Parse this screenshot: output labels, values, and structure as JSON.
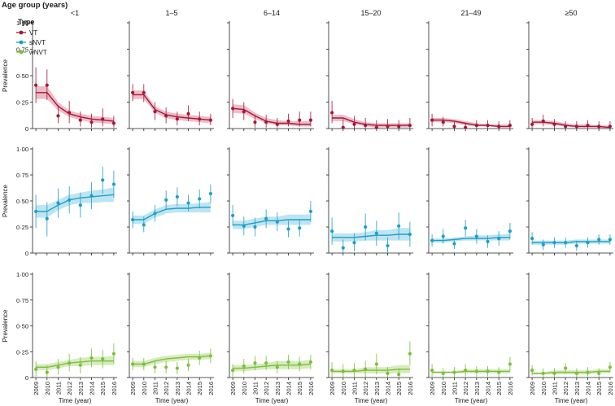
{
  "chart_data": {
    "type": "scatter",
    "title": "Age group (years)",
    "legend_title": "Type",
    "legend_position": "top-left",
    "xlabel": "Time (year)",
    "ylabel": "Prevalence",
    "x": [
      2009,
      2010,
      2011,
      2012,
      2013,
      2014,
      2015,
      2016
    ],
    "x_tick_labels": [
      "2009",
      "2010",
      "2011",
      "2012",
      "2013",
      "2014",
      "2015",
      "2016"
    ],
    "xlim": [
      2008.7,
      2016.3
    ],
    "ylim": [
      0,
      1
    ],
    "y_ticks": [
      0,
      0.25,
      0.5,
      0.75,
      1
    ],
    "y_tick_labels": [
      "0",
      "0·25",
      "0·50",
      "0·75",
      "1·00"
    ],
    "age_groups": [
      "<1",
      "1–5",
      "6–14",
      "15–20",
      "21–49",
      "≥50"
    ],
    "types": [
      {
        "name": "VT",
        "color": "#a3173a",
        "band_color": "#e8a5b1"
      },
      {
        "name": "sNVT",
        "color": "#1aa0c8",
        "band_color": "#a9dbec"
      },
      {
        "name": "wNVT",
        "color": "#7bbf3a",
        "band_color": "#c9e4a8"
      }
    ],
    "series": [
      {
        "type": "VT",
        "age_group": "<1",
        "points": [
          0.41,
          0.41,
          0.12,
          0.15,
          0.08,
          0.06,
          0.09,
          0.05
        ],
        "lower": [
          0.24,
          0.27,
          0.05,
          0.05,
          0.02,
          0.01,
          0.02,
          0.01
        ],
        "upper": [
          0.58,
          0.56,
          0.22,
          0.26,
          0.16,
          0.14,
          0.19,
          0.12
        ],
        "fit": [
          0.34,
          0.34,
          0.21,
          0.14,
          0.11,
          0.09,
          0.08,
          0.07
        ],
        "fit_lower": [
          0.28,
          0.28,
          0.17,
          0.11,
          0.08,
          0.06,
          0.05,
          0.04
        ],
        "fit_upper": [
          0.4,
          0.4,
          0.25,
          0.17,
          0.14,
          0.12,
          0.11,
          0.1
        ]
      },
      {
        "type": "VT",
        "age_group": "1–5",
        "points": [
          0.34,
          0.34,
          0.16,
          0.12,
          0.09,
          0.14,
          0.09,
          0.08
        ],
        "lower": [
          0.26,
          0.25,
          0.08,
          0.05,
          0.03,
          0.07,
          0.03,
          0.03
        ],
        "upper": [
          0.42,
          0.42,
          0.25,
          0.2,
          0.16,
          0.22,
          0.16,
          0.14
        ],
        "fit": [
          0.32,
          0.32,
          0.18,
          0.13,
          0.11,
          0.1,
          0.09,
          0.08
        ],
        "fit_lower": [
          0.28,
          0.28,
          0.15,
          0.1,
          0.08,
          0.07,
          0.06,
          0.05
        ],
        "fit_upper": [
          0.36,
          0.36,
          0.21,
          0.16,
          0.14,
          0.13,
          0.12,
          0.11
        ]
      },
      {
        "type": "VT",
        "age_group": "6–14",
        "points": [
          0.19,
          0.16,
          0.06,
          0.06,
          0.04,
          0.07,
          0.08,
          0.08
        ],
        "lower": [
          0.1,
          0.08,
          0.01,
          0.01,
          0.01,
          0.02,
          0.02,
          0.02
        ],
        "upper": [
          0.28,
          0.25,
          0.13,
          0.13,
          0.1,
          0.14,
          0.16,
          0.16
        ],
        "fit": [
          0.19,
          0.18,
          0.12,
          0.07,
          0.05,
          0.05,
          0.04,
          0.04
        ],
        "fit_lower": [
          0.15,
          0.14,
          0.09,
          0.05,
          0.03,
          0.03,
          0.02,
          0.02
        ],
        "fit_upper": [
          0.23,
          0.22,
          0.15,
          0.1,
          0.08,
          0.07,
          0.07,
          0.07
        ]
      },
      {
        "type": "VT",
        "age_group": "15–20",
        "points": [
          0.15,
          0.01,
          0.04,
          0.03,
          0.01,
          0.02,
          0.02,
          0.03
        ],
        "lower": [
          0.05,
          0.0,
          0.0,
          0.0,
          0.0,
          0.0,
          0.0,
          0.0
        ],
        "upper": [
          0.26,
          0.09,
          0.12,
          0.1,
          0.08,
          0.09,
          0.08,
          0.1
        ],
        "fit": [
          0.1,
          0.1,
          0.06,
          0.04,
          0.03,
          0.03,
          0.03,
          0.03
        ],
        "fit_lower": [
          0.07,
          0.07,
          0.04,
          0.02,
          0.01,
          0.01,
          0.01,
          0.01
        ],
        "fit_upper": [
          0.13,
          0.13,
          0.09,
          0.06,
          0.05,
          0.05,
          0.05,
          0.05
        ]
      },
      {
        "type": "VT",
        "age_group": "21–49",
        "points": [
          0.08,
          0.06,
          0.02,
          0.01,
          0.03,
          0.03,
          0.02,
          0.03
        ],
        "lower": [
          0.02,
          0.02,
          0.0,
          0.0,
          0.0,
          0.0,
          0.0,
          0.0
        ],
        "upper": [
          0.14,
          0.11,
          0.07,
          0.05,
          0.08,
          0.08,
          0.07,
          0.08
        ],
        "fit": [
          0.08,
          0.08,
          0.07,
          0.05,
          0.03,
          0.03,
          0.02,
          0.02
        ],
        "fit_lower": [
          0.06,
          0.06,
          0.05,
          0.03,
          0.02,
          0.02,
          0.01,
          0.01
        ],
        "fit_upper": [
          0.1,
          0.1,
          0.09,
          0.07,
          0.05,
          0.04,
          0.04,
          0.04
        ]
      },
      {
        "type": "VT",
        "age_group": "≥50",
        "points": [
          0.04,
          0.07,
          0.04,
          0.02,
          0.02,
          0.03,
          0.02,
          0.02
        ],
        "lower": [
          0.0,
          0.02,
          0.0,
          0.0,
          0.0,
          0.0,
          0.0,
          0.0
        ],
        "upper": [
          0.1,
          0.13,
          0.09,
          0.07,
          0.07,
          0.08,
          0.07,
          0.07
        ],
        "fit": [
          0.06,
          0.06,
          0.05,
          0.03,
          0.02,
          0.02,
          0.02,
          0.01
        ],
        "fit_lower": [
          0.04,
          0.04,
          0.03,
          0.02,
          0.01,
          0.01,
          0.01,
          0.0
        ],
        "fit_upper": [
          0.08,
          0.08,
          0.07,
          0.05,
          0.04,
          0.04,
          0.03,
          0.03
        ]
      },
      {
        "type": "sNVT",
        "age_group": "<1",
        "points": [
          0.4,
          0.33,
          0.48,
          0.51,
          0.46,
          0.55,
          0.7,
          0.66
        ],
        "lower": [
          0.24,
          0.16,
          0.34,
          0.38,
          0.34,
          0.42,
          0.57,
          0.53
        ],
        "upper": [
          0.56,
          0.49,
          0.62,
          0.64,
          0.58,
          0.68,
          0.83,
          0.79
        ],
        "fit": [
          0.4,
          0.4,
          0.46,
          0.51,
          0.53,
          0.54,
          0.55,
          0.56
        ],
        "fit_lower": [
          0.34,
          0.34,
          0.41,
          0.46,
          0.48,
          0.48,
          0.49,
          0.49
        ],
        "fit_upper": [
          0.46,
          0.46,
          0.51,
          0.56,
          0.58,
          0.6,
          0.61,
          0.63
        ]
      },
      {
        "type": "sNVT",
        "age_group": "1–5",
        "points": [
          0.32,
          0.27,
          0.38,
          0.51,
          0.54,
          0.48,
          0.52,
          0.57
        ],
        "lower": [
          0.24,
          0.2,
          0.3,
          0.42,
          0.45,
          0.4,
          0.43,
          0.48
        ],
        "upper": [
          0.4,
          0.35,
          0.46,
          0.6,
          0.63,
          0.56,
          0.61,
          0.66
        ],
        "fit": [
          0.32,
          0.32,
          0.38,
          0.42,
          0.43,
          0.43,
          0.44,
          0.44
        ],
        "fit_lower": [
          0.28,
          0.28,
          0.34,
          0.38,
          0.39,
          0.39,
          0.39,
          0.39
        ],
        "fit_upper": [
          0.36,
          0.36,
          0.42,
          0.46,
          0.47,
          0.47,
          0.48,
          0.49
        ]
      },
      {
        "type": "sNVT",
        "age_group": "6–14",
        "points": [
          0.36,
          0.26,
          0.25,
          0.33,
          0.3,
          0.23,
          0.24,
          0.4
        ],
        "lower": [
          0.26,
          0.17,
          0.16,
          0.24,
          0.21,
          0.15,
          0.16,
          0.3
        ],
        "upper": [
          0.46,
          0.35,
          0.34,
          0.42,
          0.39,
          0.31,
          0.32,
          0.5
        ],
        "fit": [
          0.27,
          0.27,
          0.29,
          0.31,
          0.31,
          0.32,
          0.32,
          0.32
        ],
        "fit_lower": [
          0.23,
          0.23,
          0.25,
          0.27,
          0.27,
          0.27,
          0.27,
          0.27
        ],
        "fit_upper": [
          0.31,
          0.31,
          0.33,
          0.35,
          0.35,
          0.37,
          0.37,
          0.37
        ]
      },
      {
        "type": "sNVT",
        "age_group": "15–20",
        "points": [
          0.21,
          0.05,
          0.1,
          0.25,
          0.19,
          0.07,
          0.26,
          0.18
        ],
        "lower": [
          0.08,
          0.0,
          0.02,
          0.12,
          0.07,
          0.0,
          0.13,
          0.06
        ],
        "upper": [
          0.34,
          0.13,
          0.19,
          0.38,
          0.31,
          0.15,
          0.39,
          0.3
        ],
        "fit": [
          0.15,
          0.15,
          0.15,
          0.16,
          0.17,
          0.17,
          0.18,
          0.18
        ],
        "fit_lower": [
          0.11,
          0.11,
          0.11,
          0.12,
          0.12,
          0.12,
          0.12,
          0.12
        ],
        "fit_upper": [
          0.19,
          0.19,
          0.19,
          0.2,
          0.22,
          0.22,
          0.24,
          0.24
        ]
      },
      {
        "type": "sNVT",
        "age_group": "21–49",
        "points": [
          0.12,
          0.16,
          0.09,
          0.24,
          0.16,
          0.11,
          0.14,
          0.21
        ],
        "lower": [
          0.06,
          0.09,
          0.04,
          0.16,
          0.09,
          0.05,
          0.07,
          0.13
        ],
        "upper": [
          0.18,
          0.23,
          0.14,
          0.32,
          0.23,
          0.17,
          0.21,
          0.29
        ],
        "fit": [
          0.12,
          0.12,
          0.13,
          0.14,
          0.14,
          0.14,
          0.15,
          0.15
        ],
        "fit_lower": [
          0.1,
          0.1,
          0.11,
          0.12,
          0.12,
          0.12,
          0.12,
          0.12
        ],
        "fit_upper": [
          0.14,
          0.14,
          0.15,
          0.16,
          0.17,
          0.17,
          0.18,
          0.18
        ]
      },
      {
        "type": "sNVT",
        "age_group": "≥50",
        "points": [
          0.14,
          0.08,
          0.1,
          0.1,
          0.07,
          0.1,
          0.13,
          0.13
        ],
        "lower": [
          0.08,
          0.03,
          0.05,
          0.05,
          0.02,
          0.05,
          0.08,
          0.08
        ],
        "upper": [
          0.2,
          0.13,
          0.15,
          0.15,
          0.12,
          0.15,
          0.18,
          0.18
        ],
        "fit": [
          0.1,
          0.1,
          0.1,
          0.1,
          0.11,
          0.11,
          0.11,
          0.11
        ],
        "fit_lower": [
          0.08,
          0.08,
          0.08,
          0.08,
          0.09,
          0.09,
          0.09,
          0.09
        ],
        "fit_upper": [
          0.12,
          0.12,
          0.12,
          0.12,
          0.13,
          0.13,
          0.13,
          0.13
        ]
      },
      {
        "type": "wNVT",
        "age_group": "<1",
        "points": [
          0.08,
          0.05,
          0.1,
          0.14,
          0.12,
          0.19,
          0.18,
          0.23
        ],
        "lower": [
          0.01,
          0.0,
          0.03,
          0.06,
          0.04,
          0.1,
          0.09,
          0.13
        ],
        "upper": [
          0.16,
          0.12,
          0.18,
          0.23,
          0.2,
          0.28,
          0.27,
          0.33
        ],
        "fit": [
          0.1,
          0.1,
          0.12,
          0.14,
          0.15,
          0.16,
          0.16,
          0.16
        ],
        "fit_lower": [
          0.07,
          0.07,
          0.09,
          0.11,
          0.11,
          0.12,
          0.12,
          0.12
        ],
        "fit_upper": [
          0.13,
          0.13,
          0.15,
          0.17,
          0.19,
          0.2,
          0.2,
          0.21
        ]
      },
      {
        "type": "wNVT",
        "age_group": "1–5",
        "points": [
          0.13,
          0.13,
          0.1,
          0.1,
          0.09,
          0.12,
          0.19,
          0.21
        ],
        "lower": [
          0.07,
          0.07,
          0.04,
          0.04,
          0.03,
          0.06,
          0.12,
          0.14
        ],
        "upper": [
          0.19,
          0.19,
          0.16,
          0.16,
          0.15,
          0.18,
          0.26,
          0.28
        ],
        "fit": [
          0.13,
          0.13,
          0.16,
          0.18,
          0.19,
          0.2,
          0.2,
          0.21
        ],
        "fit_lower": [
          0.1,
          0.1,
          0.13,
          0.15,
          0.16,
          0.17,
          0.17,
          0.18
        ],
        "fit_upper": [
          0.16,
          0.16,
          0.19,
          0.21,
          0.22,
          0.23,
          0.23,
          0.24
        ]
      },
      {
        "type": "wNVT",
        "age_group": "6–14",
        "points": [
          0.07,
          0.11,
          0.14,
          0.14,
          0.1,
          0.15,
          0.13,
          0.15
        ],
        "lower": [
          0.01,
          0.04,
          0.07,
          0.07,
          0.04,
          0.08,
          0.06,
          0.08
        ],
        "upper": [
          0.13,
          0.18,
          0.21,
          0.21,
          0.16,
          0.22,
          0.2,
          0.22
        ],
        "fit": [
          0.09,
          0.09,
          0.1,
          0.11,
          0.12,
          0.12,
          0.12,
          0.13
        ],
        "fit_lower": [
          0.06,
          0.06,
          0.07,
          0.08,
          0.08,
          0.08,
          0.08,
          0.09
        ],
        "fit_upper": [
          0.12,
          0.12,
          0.13,
          0.14,
          0.16,
          0.16,
          0.16,
          0.17
        ]
      },
      {
        "type": "wNVT",
        "age_group": "15–20",
        "points": [
          0.07,
          0.06,
          0.07,
          0.08,
          0.13,
          0.04,
          0.03,
          0.23
        ],
        "lower": [
          0.0,
          0.0,
          0.0,
          0.0,
          0.03,
          0.0,
          0.0,
          0.12
        ],
        "upper": [
          0.15,
          0.13,
          0.14,
          0.16,
          0.23,
          0.1,
          0.09,
          0.35
        ],
        "fit": [
          0.06,
          0.06,
          0.06,
          0.07,
          0.07,
          0.07,
          0.08,
          0.08
        ],
        "fit_lower": [
          0.04,
          0.04,
          0.04,
          0.04,
          0.04,
          0.04,
          0.04,
          0.04
        ],
        "fit_upper": [
          0.08,
          0.08,
          0.08,
          0.1,
          0.1,
          0.1,
          0.12,
          0.12
        ]
      },
      {
        "type": "wNVT",
        "age_group": "21–49",
        "points": [
          0.07,
          0.04,
          0.05,
          0.07,
          0.06,
          0.06,
          0.05,
          0.13
        ],
        "lower": [
          0.01,
          0.0,
          0.0,
          0.01,
          0.01,
          0.01,
          0.0,
          0.06
        ],
        "upper": [
          0.13,
          0.09,
          0.1,
          0.13,
          0.11,
          0.11,
          0.1,
          0.2
        ],
        "fit": [
          0.05,
          0.05,
          0.05,
          0.06,
          0.06,
          0.06,
          0.06,
          0.06
        ],
        "fit_lower": [
          0.04,
          0.04,
          0.04,
          0.04,
          0.04,
          0.04,
          0.04,
          0.04
        ],
        "fit_upper": [
          0.06,
          0.06,
          0.06,
          0.08,
          0.08,
          0.08,
          0.08,
          0.08
        ]
      },
      {
        "type": "wNVT",
        "age_group": "≥50",
        "points": [
          0.07,
          0.04,
          0.04,
          0.09,
          0.04,
          0.05,
          0.04,
          0.1
        ],
        "lower": [
          0.02,
          0.0,
          0.0,
          0.04,
          0.0,
          0.01,
          0.0,
          0.05
        ],
        "upper": [
          0.12,
          0.09,
          0.09,
          0.14,
          0.09,
          0.1,
          0.09,
          0.15
        ],
        "fit": [
          0.04,
          0.04,
          0.05,
          0.05,
          0.05,
          0.05,
          0.06,
          0.06
        ],
        "fit_lower": [
          0.03,
          0.03,
          0.03,
          0.03,
          0.03,
          0.03,
          0.04,
          0.04
        ],
        "fit_upper": [
          0.05,
          0.05,
          0.07,
          0.07,
          0.07,
          0.07,
          0.08,
          0.08
        ]
      }
    ]
  }
}
